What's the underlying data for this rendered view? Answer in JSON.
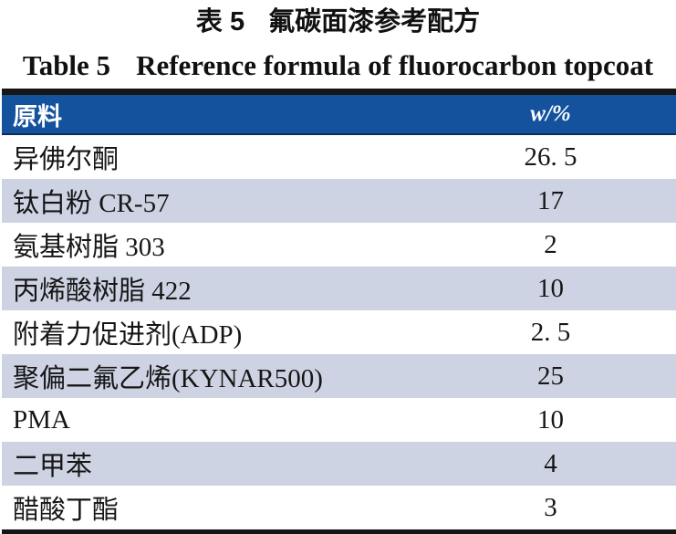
{
  "titles": {
    "cn_label": "表 5",
    "cn_text": "氟碳面漆参考配方",
    "en_label": "Table 5",
    "en_text": "Reference formula of fluorocarbon topcoat"
  },
  "table": {
    "columns": [
      {
        "label": "原料"
      },
      {
        "label": "w/%"
      }
    ],
    "rows": [
      {
        "material": "异佛尔酮",
        "value": "26. 5"
      },
      {
        "material": "钛白粉 CR-57",
        "value": "17"
      },
      {
        "material": "氨基树脂 303",
        "value": "2"
      },
      {
        "material": "丙烯酸树脂 422",
        "value": "10"
      },
      {
        "material": "附着力促进剂(ADP)",
        "value": "2. 5"
      },
      {
        "material": "聚偏二氟乙烯(KYNAR500)",
        "value": "25"
      },
      {
        "material": "PMA",
        "value": "10"
      },
      {
        "material": "二甲苯",
        "value": "4"
      },
      {
        "material": "醋酸丁酯",
        "value": "3"
      }
    ],
    "colors": {
      "header_bg": "#15529d",
      "header_text": "#ffffff",
      "row_shade": "#ced3e3",
      "rule": "#161616"
    }
  }
}
